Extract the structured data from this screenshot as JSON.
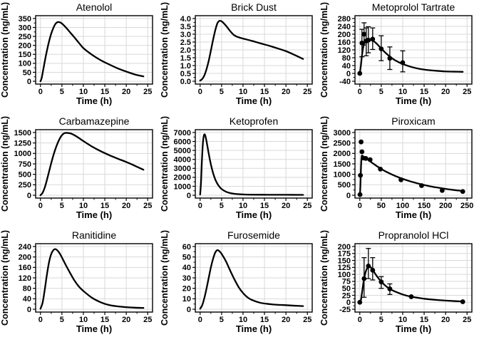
{
  "figure": {
    "y_axis_label": "Concentration (ng/mL)",
    "x_axis_label": "Time (h)",
    "background_color": "#ffffff",
    "panel_border_color": "#000000",
    "grid_color": "#d9d9d9",
    "line_color": "#000000",
    "point_color": "#000000",
    "layout": "3x3 grid of concentration-time panels"
  },
  "chart_data": [
    {
      "type": "line",
      "title": "Atenolol",
      "xlabel": "Time (h)",
      "ylabel": "Concentration (ng/mL)",
      "xlim": [
        0,
        25
      ],
      "ylim": [
        0,
        350
      ],
      "xticks": [
        0,
        5,
        10,
        15,
        20,
        25
      ],
      "yticks": [
        0,
        50,
        100,
        150,
        200,
        250,
        300,
        350
      ],
      "grid": true,
      "legend": false,
      "curve": {
        "x": [
          0,
          0.25,
          0.5,
          1,
          1.5,
          2,
          2.5,
          3,
          3.5,
          4,
          4.5,
          5,
          6,
          7,
          8,
          9,
          10,
          12,
          14,
          16,
          18,
          20,
          22,
          24
        ],
        "y": [
          0,
          15,
          45,
          110,
          170,
          222,
          265,
          297,
          320,
          330,
          329,
          322,
          298,
          270,
          242,
          213,
          185,
          148,
          118,
          94,
          72,
          54,
          38,
          27
        ]
      }
    },
    {
      "type": "line",
      "title": "Brick Dust",
      "xlabel": "Time (h)",
      "ylabel": "Concentration (ng/mL)",
      "xlim": [
        0,
        25
      ],
      "ylim": [
        0,
        4
      ],
      "xticks": [
        0,
        5,
        10,
        15,
        20,
        25
      ],
      "yticks": [
        0,
        0.5,
        1,
        1.5,
        2,
        2.5,
        3,
        3.5,
        4
      ],
      "ytick_labels": [
        "0.0",
        "0.5",
        "1.0",
        "1.5",
        "2.0",
        "2.5",
        "3.0",
        "3.5",
        "4.0"
      ],
      "grid": true,
      "legend": false,
      "curve": {
        "x": [
          0,
          0.5,
          1,
          1.5,
          2,
          2.5,
          3,
          3.5,
          4,
          4.5,
          5,
          5.5,
          6,
          7,
          8,
          9,
          10,
          12,
          14,
          16,
          18,
          20,
          22,
          24
        ],
        "y": [
          0.04,
          0.15,
          0.38,
          0.78,
          1.3,
          1.95,
          2.62,
          3.22,
          3.68,
          3.85,
          3.82,
          3.7,
          3.55,
          3.2,
          2.92,
          2.8,
          2.72,
          2.58,
          2.42,
          2.27,
          2.1,
          1.92,
          1.68,
          1.42
        ]
      }
    },
    {
      "type": "line",
      "title": "Metoprolol Tartrate",
      "xlabel": "Time (h)",
      "ylabel": "Concentration (ng/mL)",
      "xlim": [
        0,
        25
      ],
      "ylim": [
        -40,
        280
      ],
      "xticks": [
        0,
        5,
        10,
        15,
        20,
        25
      ],
      "yticks": [
        -40,
        0,
        40,
        80,
        120,
        160,
        200,
        240,
        280
      ],
      "grid": true,
      "legend": false,
      "curve": {
        "x": [
          0,
          0.25,
          0.5,
          0.75,
          1,
          1.25,
          1.5,
          2,
          2.5,
          3,
          3.5,
          4,
          5,
          6,
          7,
          8,
          9,
          10,
          12,
          14,
          16,
          18,
          20,
          22,
          24
        ],
        "y": [
          0,
          40,
          90,
          128,
          150,
          162,
          167,
          170,
          170,
          168,
          160,
          150,
          127,
          105,
          86,
          70,
          58,
          48,
          33,
          23,
          17,
          13,
          10,
          9,
          8
        ]
      },
      "points": {
        "x": [
          0,
          0.5,
          1,
          1.5,
          2,
          3,
          5,
          7,
          10
        ],
        "y": [
          0,
          155,
          200,
          165,
          170,
          175,
          125,
          77,
          55
        ],
        "lo": [
          null,
          85,
          145,
          90,
          105,
          122,
          65,
          20,
          8
        ],
        "hi": [
          null,
          225,
          258,
          232,
          238,
          232,
          192,
          135,
          115
        ]
      }
    },
    {
      "type": "line",
      "title": "Carbamazepine",
      "xlabel": "Time (h)",
      "ylabel": "Concentration (ng/mL)",
      "xlim": [
        0,
        25
      ],
      "ylim": [
        0,
        1500
      ],
      "xticks": [
        0,
        5,
        10,
        15,
        20,
        25
      ],
      "yticks": [
        0,
        250,
        500,
        750,
        1000,
        1250,
        1500
      ],
      "grid": true,
      "legend": false,
      "curve": {
        "x": [
          0,
          0.5,
          1,
          1.5,
          2,
          2.5,
          3,
          3.5,
          4,
          4.5,
          5,
          5.5,
          6,
          7,
          8,
          9,
          10,
          12,
          14,
          16,
          18,
          20,
          22,
          24
        ],
        "y": [
          0,
          60,
          185,
          365,
          565,
          765,
          950,
          1110,
          1245,
          1355,
          1435,
          1480,
          1492,
          1478,
          1430,
          1365,
          1295,
          1165,
          1055,
          960,
          875,
          795,
          705,
          610
        ]
      }
    },
    {
      "type": "line",
      "title": "Ketoprofen",
      "xlabel": "Time (h)",
      "ylabel": "Concentration (ng/mL)",
      "xlim": [
        0,
        25
      ],
      "ylim": [
        0,
        7000
      ],
      "xticks": [
        0,
        5,
        10,
        15,
        20,
        25
      ],
      "yticks": [
        0,
        1000,
        2000,
        3000,
        4000,
        5000,
        6000,
        7000
      ],
      "grid": true,
      "legend": false,
      "curve": {
        "x": [
          0,
          0.2,
          0.4,
          0.6,
          0.8,
          1,
          1.2,
          1.5,
          2,
          2.5,
          3,
          3.5,
          4,
          4.5,
          5,
          6,
          7,
          8,
          10,
          12,
          16,
          20,
          24
        ],
        "y": [
          80,
          1400,
          3700,
          5500,
          6500,
          6800,
          6650,
          6000,
          4650,
          3450,
          2500,
          1800,
          1300,
          950,
          700,
          400,
          240,
          160,
          90,
          65,
          55,
          50,
          45
        ]
      }
    },
    {
      "type": "line",
      "title": "Piroxicam",
      "xlabel": "Time (h)",
      "ylabel": "Concentration (ng/mL)",
      "xlim": [
        0,
        250
      ],
      "ylim": [
        0,
        3000
      ],
      "xticks": [
        0,
        50,
        100,
        150,
        200,
        250
      ],
      "yticks": [
        0,
        500,
        1000,
        1500,
        2000,
        2500,
        3000
      ],
      "grid": true,
      "legend": false,
      "curve": {
        "x": [
          0,
          1,
          2,
          3,
          4,
          5,
          6,
          8,
          12,
          16,
          20,
          30,
          40,
          50,
          60,
          80,
          100,
          120,
          140,
          160,
          180,
          200,
          220,
          240
        ],
        "y": [
          10,
          250,
          850,
          1450,
          1800,
          1900,
          1885,
          1840,
          1780,
          1730,
          1685,
          1530,
          1390,
          1260,
          1140,
          945,
          785,
          650,
          540,
          445,
          370,
          305,
          250,
          205
        ]
      },
      "points": {
        "x": [
          0.5,
          1.5,
          3,
          5,
          8,
          14,
          24,
          48,
          96,
          144,
          192,
          240
        ],
        "y": [
          30,
          950,
          2550,
          2080,
          1780,
          1760,
          1700,
          1250,
          740,
          460,
          230,
          180
        ],
        "lo": [
          null,
          null,
          null,
          null,
          null,
          null,
          null,
          null,
          null,
          null,
          null,
          null
        ],
        "hi": [
          null,
          null,
          null,
          null,
          null,
          null,
          null,
          null,
          null,
          null,
          null,
          null
        ]
      }
    },
    {
      "type": "line",
      "title": "Ranitidine",
      "xlabel": "Time (h)",
      "ylabel": "Concentration (ng/mL)",
      "xlim": [
        0,
        25
      ],
      "ylim": [
        0,
        240
      ],
      "xticks": [
        0,
        5,
        10,
        15,
        20,
        25
      ],
      "yticks": [
        0,
        40,
        80,
        120,
        160,
        200,
        240
      ],
      "grid": true,
      "legend": false,
      "curve": {
        "x": [
          0,
          0.5,
          1,
          1.5,
          2,
          2.5,
          3,
          3.5,
          4,
          4.5,
          5,
          5.5,
          6,
          7,
          8,
          9,
          10,
          12,
          14,
          16,
          18,
          20,
          22,
          24
        ],
        "y": [
          2,
          25,
          75,
          132,
          180,
          211,
          226,
          230,
          224,
          213,
          198,
          182,
          166,
          136,
          108,
          86,
          70,
          44,
          27,
          16,
          11,
          8,
          6,
          5
        ]
      }
    },
    {
      "type": "line",
      "title": "Furosemide",
      "xlabel": "Time (h)",
      "ylabel": "Concentration (ng/mL)",
      "xlim": [
        0,
        25
      ],
      "ylim": [
        0,
        60
      ],
      "xticks": [
        0,
        5,
        10,
        15,
        20,
        25
      ],
      "yticks": [
        0,
        10,
        20,
        30,
        40,
        50,
        60
      ],
      "grid": true,
      "legend": false,
      "curve": {
        "x": [
          0,
          0.5,
          1,
          1.5,
          2,
          2.5,
          3,
          3.5,
          4,
          4.5,
          5,
          6,
          7,
          8,
          9,
          10,
          11,
          12,
          14,
          16,
          18,
          20,
          22,
          24
        ],
        "y": [
          0.5,
          4,
          11,
          20,
          30,
          40,
          48,
          54,
          56.5,
          55.5,
          53,
          46,
          37,
          28.5,
          21,
          15.5,
          11.5,
          9,
          6.2,
          5,
          4.3,
          3.9,
          3.4,
          3
        ]
      }
    },
    {
      "type": "line",
      "title": "Propranolol HCl",
      "xlabel": "Time (h)",
      "ylabel": "Concentration (ng/mL)",
      "xlim": [
        0,
        25
      ],
      "ylim": [
        -25,
        200
      ],
      "xticks": [
        0,
        5,
        10,
        15,
        20,
        25
      ],
      "yticks": [
        -25,
        0,
        25,
        50,
        75,
        100,
        125,
        150,
        175,
        200
      ],
      "grid": true,
      "legend": false,
      "curve": {
        "x": [
          0,
          0.25,
          0.5,
          1,
          1.5,
          2,
          2.5,
          3,
          4,
          5,
          6,
          7,
          8,
          10,
          12,
          14,
          16,
          20,
          24
        ],
        "y": [
          0,
          8,
          32,
          85,
          115,
          128,
          126,
          116,
          93,
          74,
          59,
          48,
          40,
          28,
          20,
          15,
          11,
          6,
          3
        ]
      },
      "points": {
        "x": [
          0,
          1,
          2,
          3,
          5,
          7,
          12,
          24
        ],
        "y": [
          0,
          85,
          130,
          115,
          73,
          48,
          20,
          2
        ],
        "lo": [
          null,
          18,
          85,
          80,
          50,
          28,
          null,
          null
        ],
        "hi": [
          null,
          160,
          193,
          160,
          92,
          66,
          null,
          null
        ]
      }
    }
  ]
}
